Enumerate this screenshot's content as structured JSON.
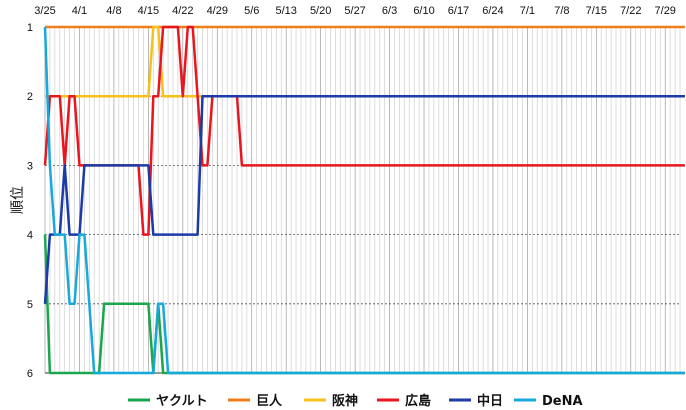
{
  "chart_data": {
    "type": "line",
    "ylabel": "順位",
    "x_ticks": [
      "3/25",
      "4/1",
      "4/8",
      "4/15",
      "4/22",
      "4/29",
      "5/6",
      "5/13",
      "5/20",
      "5/27",
      "6/3",
      "6/10",
      "6/17",
      "6/24",
      "7/1",
      "7/8",
      "7/15",
      "7/22",
      "7/29"
    ],
    "x_range": [
      "3/25",
      "7/31"
    ],
    "ylim": [
      1,
      6
    ],
    "y_ticks": [
      1,
      2,
      3,
      4,
      5,
      6
    ],
    "y_inverted": true,
    "grid": true,
    "legend_position": "bottom",
    "series": [
      {
        "name": "ヤクルト",
        "color": "#1aa64a",
        "values": [
          4,
          6,
          6,
          6,
          6,
          6,
          6,
          6,
          6,
          6,
          6,
          6,
          5,
          5,
          5,
          5,
          5,
          5,
          5,
          5,
          5,
          5,
          6,
          5,
          6,
          6,
          6,
          6,
          6,
          6,
          6,
          6,
          6,
          6,
          6,
          6,
          6,
          6,
          6,
          6,
          6,
          6,
          6,
          6,
          6,
          6,
          6,
          6,
          6,
          6,
          6,
          6,
          6,
          6,
          6,
          6,
          6,
          6,
          6,
          6,
          6,
          6,
          6,
          6,
          6,
          6,
          6,
          6,
          6,
          6,
          6,
          6,
          6,
          6,
          6,
          6,
          6,
          6,
          6,
          6,
          6,
          6,
          6,
          6,
          6,
          6,
          6,
          6,
          6,
          6,
          6,
          6,
          6,
          6,
          6,
          6,
          6,
          6,
          6,
          6,
          6,
          6,
          6,
          6,
          6,
          6,
          6,
          6,
          6,
          6,
          6,
          6,
          6,
          6,
          6,
          6,
          6,
          6,
          6,
          6,
          6,
          6,
          6,
          6,
          6,
          6,
          6,
          6,
          6,
          6,
          6
        ]
      },
      {
        "name": "巨人",
        "color": "#f07d1a",
        "values": [
          1,
          1,
          1,
          1,
          1,
          1,
          1,
          1,
          1,
          1,
          1,
          1,
          1,
          1,
          1,
          1,
          1,
          1,
          1,
          1,
          1,
          1,
          1,
          1,
          1,
          1,
          1,
          1,
          1,
          1,
          1,
          1,
          1,
          1,
          1,
          1,
          1,
          1,
          1,
          1,
          1,
          1,
          1,
          1,
          1,
          1,
          1,
          1,
          1,
          1,
          1,
          1,
          1,
          1,
          1,
          1,
          1,
          1,
          1,
          1,
          1,
          1,
          1,
          1,
          1,
          1,
          1,
          1,
          1,
          1,
          1,
          1,
          1,
          1,
          1,
          1,
          1,
          1,
          1,
          1,
          1,
          1,
          1,
          1,
          1,
          1,
          1,
          1,
          1,
          1,
          1,
          1,
          1,
          1,
          1,
          1,
          1,
          1,
          1,
          1,
          1,
          1,
          1,
          1,
          1,
          1,
          1,
          1,
          1,
          1,
          1,
          1,
          1,
          1,
          1,
          1,
          1,
          1,
          1,
          1,
          1,
          1,
          1,
          1,
          1,
          1,
          1,
          1,
          1,
          1,
          1
        ]
      },
      {
        "name": "阪神",
        "color": "#f5c11a",
        "values": [
          2,
          2,
          2,
          2,
          2,
          2,
          2,
          2,
          2,
          2,
          2,
          2,
          2,
          2,
          2,
          2,
          2,
          2,
          2,
          2,
          2,
          2,
          1,
          1,
          2,
          2,
          2,
          2,
          2,
          2,
          2,
          2,
          2,
          2,
          2,
          2,
          2,
          2,
          2,
          2,
          2,
          2,
          2,
          2,
          2,
          2,
          2,
          2,
          2,
          2,
          2,
          2,
          2,
          2,
          2,
          2,
          2,
          2,
          2,
          2,
          2,
          2,
          2,
          2,
          2,
          2,
          2,
          2,
          2,
          2,
          2,
          2,
          2,
          2,
          2,
          2,
          2,
          2,
          2,
          2,
          2,
          2,
          2,
          2,
          2,
          2,
          2,
          2,
          2,
          2,
          2,
          2,
          2,
          2,
          2,
          2,
          2,
          2,
          2,
          2,
          2,
          2,
          2,
          2,
          2,
          2,
          2,
          2,
          2,
          2,
          2,
          2,
          2,
          2,
          2,
          2,
          2,
          2,
          2,
          2,
          2,
          2,
          2,
          2,
          2,
          2,
          2,
          2,
          2,
          2,
          2
        ]
      },
      {
        "name": "広島",
        "color": "#e8161e",
        "values": [
          3,
          2,
          2,
          2,
          3,
          2,
          2,
          3,
          3,
          3,
          3,
          3,
          3,
          3,
          3,
          3,
          3,
          3,
          3,
          3,
          4,
          4,
          2,
          2,
          1,
          1,
          1,
          1,
          2,
          1,
          1,
          2,
          3,
          3,
          2,
          2,
          2,
          2,
          2,
          2,
          3,
          3,
          3,
          3,
          3,
          3,
          3,
          3,
          3,
          3,
          3,
          3,
          3,
          3,
          3,
          3,
          3,
          3,
          3,
          3,
          3,
          3,
          3,
          3,
          3,
          3,
          3,
          3,
          3,
          3,
          3,
          3,
          3,
          3,
          3,
          3,
          3,
          3,
          3,
          3,
          3,
          3,
          3,
          3,
          3,
          3,
          3,
          3,
          3,
          3,
          3,
          3,
          3,
          3,
          3,
          3,
          3,
          3,
          3,
          3,
          3,
          3,
          3,
          3,
          3,
          3,
          3,
          3,
          3,
          3,
          3,
          3,
          3,
          3,
          3,
          3,
          3,
          3,
          3,
          3,
          3,
          3,
          3,
          3,
          3,
          3,
          3,
          3,
          3,
          3,
          3
        ]
      },
      {
        "name": "中日",
        "color": "#1c3aa8",
        "values": [
          5,
          4,
          4,
          4,
          3,
          4,
          4,
          4,
          3,
          3,
          3,
          3,
          3,
          3,
          3,
          3,
          3,
          3,
          3,
          3,
          3,
          3,
          4,
          4,
          4,
          4,
          4,
          4,
          4,
          4,
          4,
          4,
          2,
          2,
          2,
          2,
          2,
          2,
          2,
          2,
          2,
          2,
          2,
          2,
          2,
          2,
          2,
          2,
          2,
          2,
          2,
          2,
          2,
          2,
          2,
          2,
          2,
          2,
          2,
          2,
          2,
          2,
          2,
          2,
          2,
          2,
          2,
          2,
          2,
          2,
          2,
          2,
          2,
          2,
          2,
          2,
          2,
          2,
          2,
          2,
          2,
          2,
          2,
          2,
          2,
          2,
          2,
          2,
          2,
          2,
          2,
          2,
          2,
          2,
          2,
          2,
          2,
          2,
          2,
          2,
          2,
          2,
          2,
          2,
          2,
          2,
          2,
          2,
          2,
          2,
          2,
          2,
          2,
          2,
          2,
          2,
          2,
          2,
          2,
          2,
          2,
          2,
          2,
          2,
          2,
          2,
          2,
          2,
          2,
          2,
          2
        ]
      },
      {
        "name": "DeNA",
        "color": "#17a8dc",
        "values": [
          1,
          3,
          4,
          4,
          4,
          5,
          5,
          4,
          4,
          5,
          6,
          6,
          6,
          6,
          6,
          6,
          6,
          6,
          6,
          6,
          6,
          6,
          6,
          5,
          5,
          6,
          6,
          6,
          6,
          6,
          6,
          6,
          6,
          6,
          6,
          6,
          6,
          6,
          6,
          6,
          6,
          6,
          6,
          6,
          6,
          6,
          6,
          6,
          6,
          6,
          6,
          6,
          6,
          6,
          6,
          6,
          6,
          6,
          6,
          6,
          6,
          6,
          6,
          6,
          6,
          6,
          6,
          6,
          6,
          6,
          6,
          6,
          6,
          6,
          6,
          6,
          6,
          6,
          6,
          6,
          6,
          6,
          6,
          6,
          6,
          6,
          6,
          6,
          6,
          6,
          6,
          6,
          6,
          6,
          6,
          6,
          6,
          6,
          6,
          6,
          6,
          6,
          6,
          6,
          6,
          6,
          6,
          6,
          6,
          6,
          6,
          6,
          6,
          6,
          6,
          6,
          6,
          6,
          6,
          6,
          6,
          6,
          6,
          6,
          6,
          6,
          6,
          6,
          6,
          6,
          6
        ]
      }
    ]
  }
}
